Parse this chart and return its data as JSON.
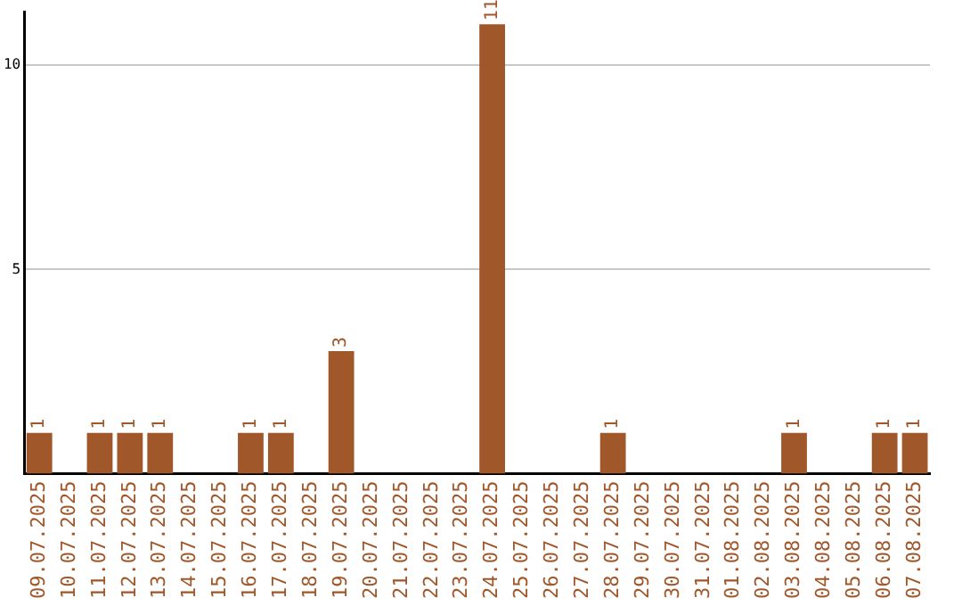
{
  "chart_data": {
    "type": "bar",
    "categories": [
      "09.07.2025",
      "10.07.2025",
      "11.07.2025",
      "12.07.2025",
      "13.07.2025",
      "14.07.2025",
      "15.07.2025",
      "16.07.2025",
      "17.07.2025",
      "18.07.2025",
      "19.07.2025",
      "20.07.2025",
      "21.07.2025",
      "22.07.2025",
      "23.07.2025",
      "24.07.2025",
      "25.07.2025",
      "26.07.2025",
      "27.07.2025",
      "28.07.2025",
      "29.07.2025",
      "30.07.2025",
      "31.07.2025",
      "01.08.2025",
      "02.08.2025",
      "03.08.2025",
      "04.08.2025",
      "05.08.2025",
      "06.08.2025",
      "07.08.2025"
    ],
    "values": [
      1,
      0,
      1,
      1,
      1,
      0,
      0,
      1,
      1,
      0,
      3,
      0,
      0,
      0,
      0,
      11,
      0,
      0,
      0,
      1,
      0,
      0,
      0,
      0,
      0,
      1,
      0,
      0,
      1,
      1
    ],
    "value_labels": [
      "1",
      null,
      "1",
      "1",
      "1",
      null,
      null,
      "1",
      "1",
      null,
      "3",
      null,
      null,
      null,
      null,
      "11",
      null,
      null,
      null,
      "1",
      null,
      null,
      null,
      null,
      null,
      "1",
      null,
      null,
      "1",
      "1"
    ],
    "color": "#a0572a",
    "ylim": [
      0,
      11.3
    ],
    "yticks": [
      5,
      10
    ],
    "grid": "y",
    "legend": false
  }
}
